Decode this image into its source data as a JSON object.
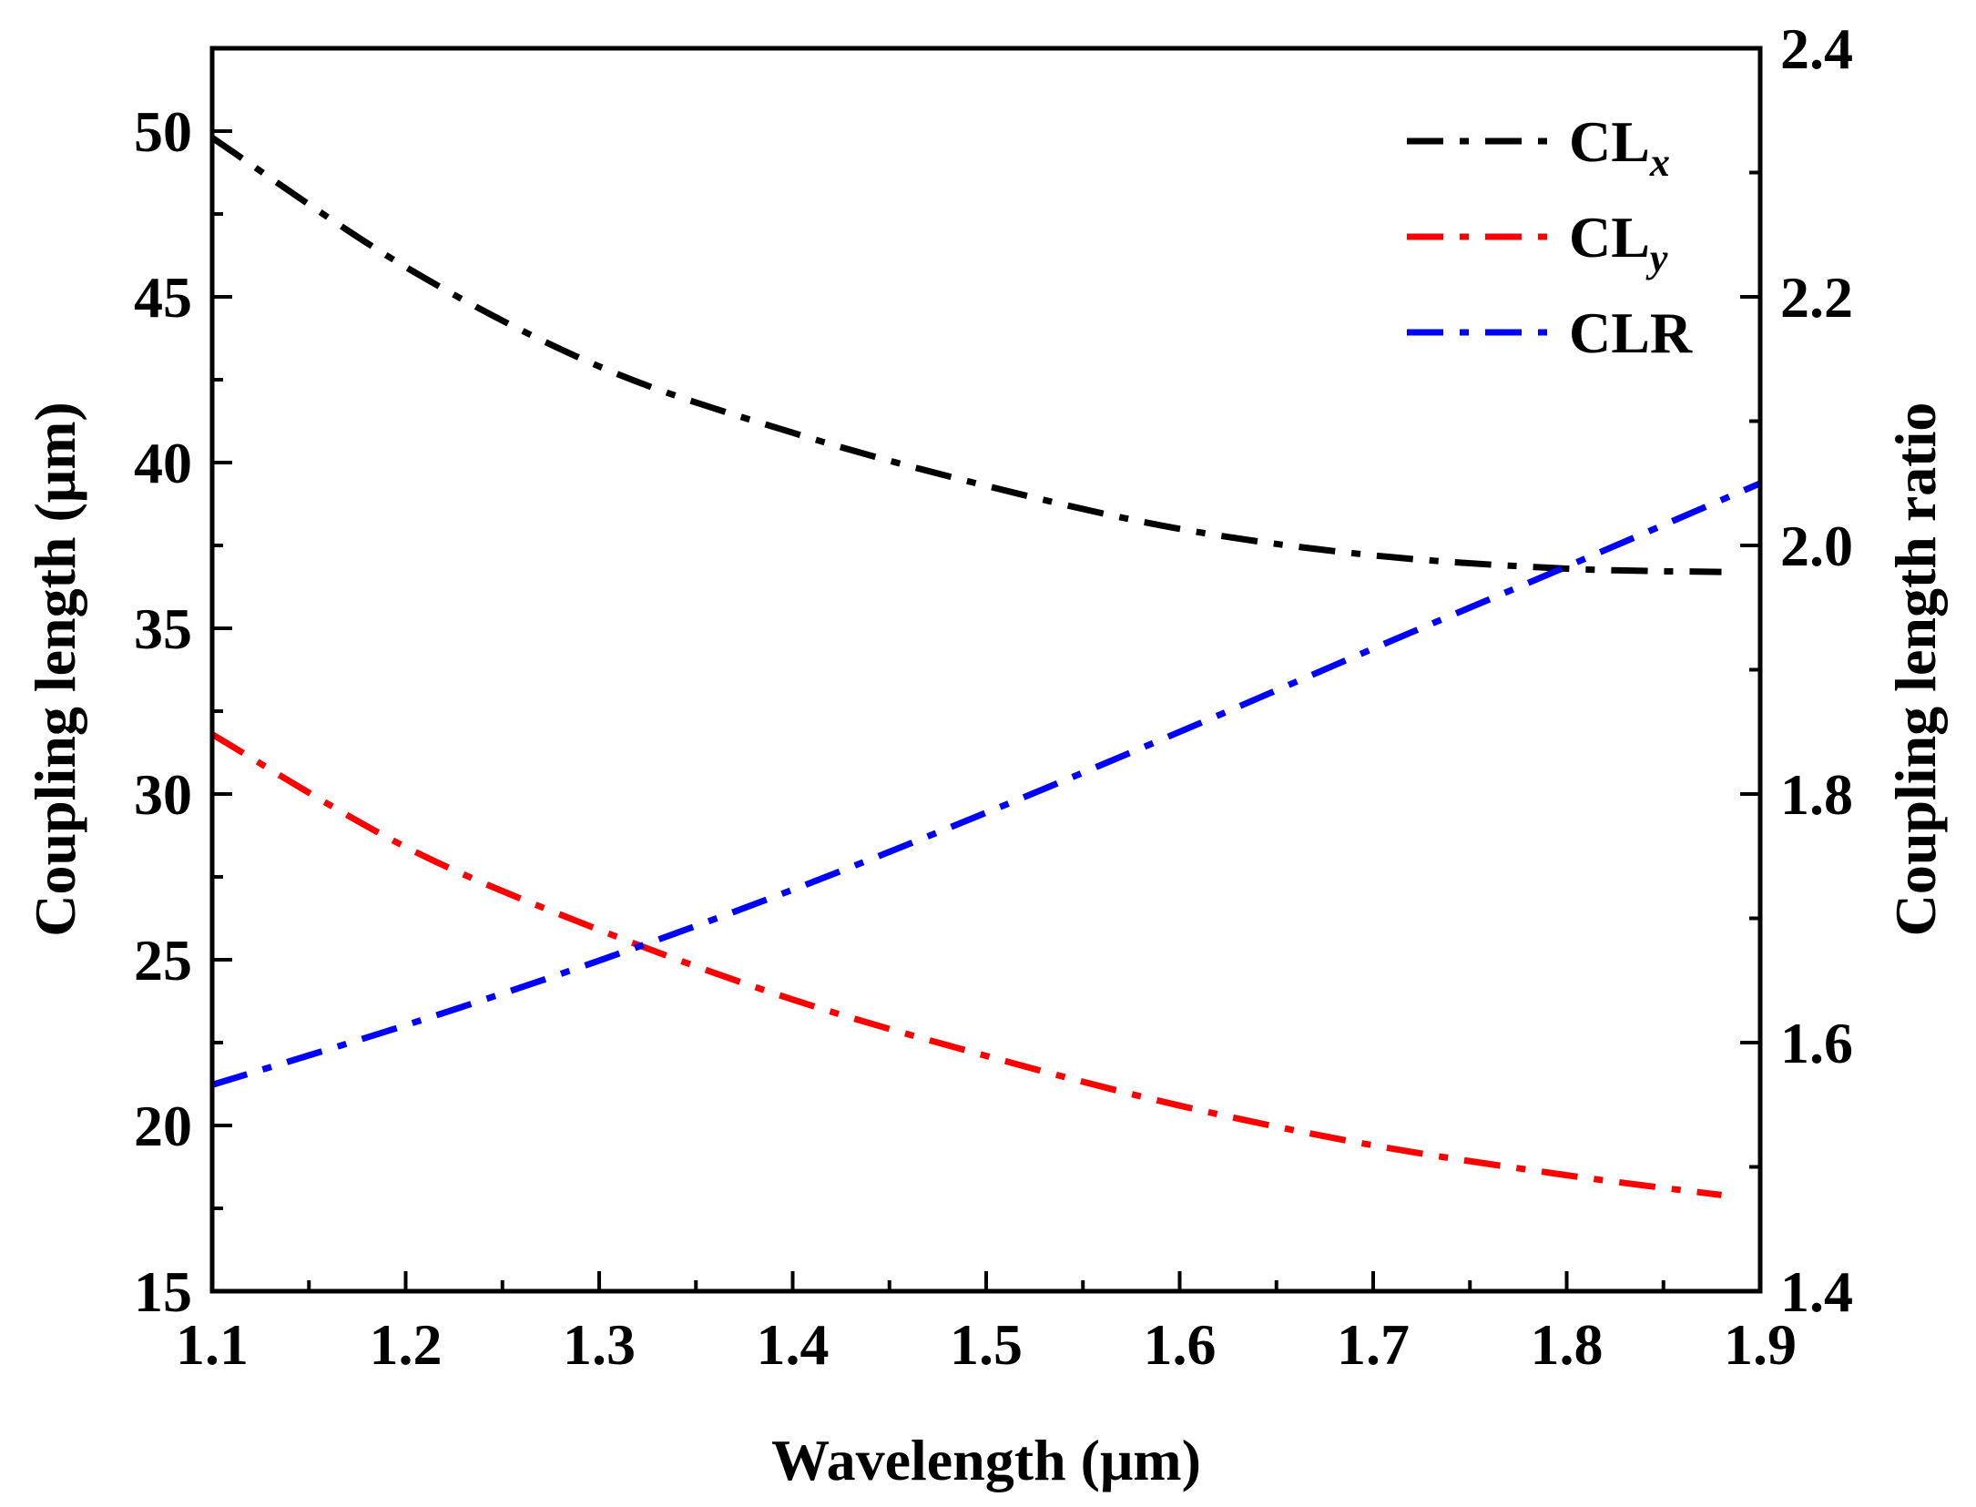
{
  "chart_data": {
    "type": "line",
    "xlabel": "Wavelength (μm)",
    "ylabel_left": "Coupling length (μm)",
    "ylabel_right": "Coupling length ratio",
    "xlim": [
      1.1,
      1.9
    ],
    "ylim_left": [
      15,
      52.5
    ],
    "ylim_right": [
      1.4,
      2.4
    ],
    "x_ticks": [
      "1.1",
      "1.2",
      "1.3",
      "1.4",
      "1.5",
      "1.6",
      "1.7",
      "1.8",
      "1.9"
    ],
    "y_left_ticks": [
      "15",
      "20",
      "25",
      "30",
      "35",
      "40",
      "45",
      "50"
    ],
    "y_right_ticks": [
      "1.4",
      "1.6",
      "1.8",
      "2.0",
      "2.2",
      "2.4"
    ],
    "legend_position": "top-right",
    "grid": false,
    "series": [
      {
        "name": "CLx",
        "label_main": "CL",
        "label_sub": "x",
        "axis": "left",
        "color": "#000000",
        "style": "dash-dot",
        "x": [
          1.1,
          1.2,
          1.3,
          1.4,
          1.5,
          1.6,
          1.7,
          1.8,
          1.88
        ],
        "values": [
          49.8,
          45.9,
          42.9,
          40.9,
          39.3,
          38.0,
          37.2,
          36.8,
          36.7
        ]
      },
      {
        "name": "CLy",
        "label_main": "CL",
        "label_sub": "y",
        "axis": "left",
        "color": "#ff0000",
        "style": "dash-dot",
        "x": [
          1.1,
          1.2,
          1.3,
          1.4,
          1.5,
          1.6,
          1.7,
          1.8,
          1.88
        ],
        "values": [
          31.8,
          28.4,
          25.9,
          23.8,
          22.1,
          20.6,
          19.4,
          18.5,
          17.9
        ]
      },
      {
        "name": "CLR",
        "label_main": "CLR",
        "label_sub": "",
        "axis": "right",
        "color": "#0000ff",
        "style": "dash-dot",
        "x": [
          1.1,
          1.2,
          1.3,
          1.4,
          1.5,
          1.6,
          1.7,
          1.8,
          1.9
        ],
        "values": [
          1.566,
          1.614,
          1.666,
          1.723,
          1.785,
          1.85,
          1.917,
          1.983,
          2.05
        ]
      }
    ]
  }
}
